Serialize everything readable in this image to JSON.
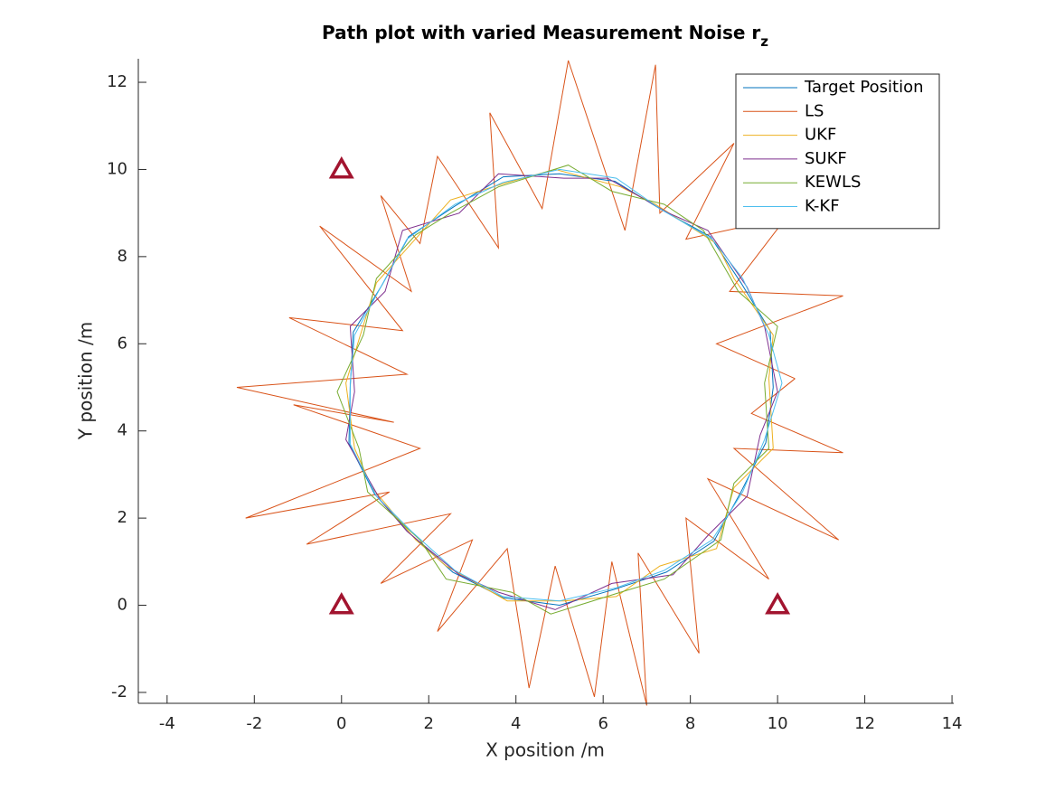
{
  "chart_data": {
    "type": "line",
    "title": "Path plot with varied Measurement Noise r",
    "title_subscript": "z",
    "xlabel": "X position /m",
    "ylabel": "Y position /m",
    "xlim": [
      -4.66,
      14.04
    ],
    "ylim": [
      -2.25,
      12.54
    ],
    "xticks": [
      -4,
      -2,
      0,
      2,
      4,
      6,
      8,
      10,
      12,
      14
    ],
    "yticks": [
      -2,
      0,
      2,
      4,
      6,
      8,
      10,
      12
    ],
    "legend": "upper right",
    "anchors": {
      "x": [
        0,
        0,
        10
      ],
      "y": [
        10,
        0,
        0
      ],
      "color": "#a2142f"
    },
    "series": [
      {
        "name": "Target Position",
        "color": "#0072bd",
        "x": [
          9.9,
          9.83,
          9.16,
          8.46,
          7.35,
          6.27,
          5.0,
          3.71,
          2.6,
          1.54,
          0.93,
          0.27,
          0.2,
          0.17,
          0.76,
          1.61,
          2.55,
          3.71,
          5.0,
          6.24,
          7.45,
          8.54,
          9.16,
          9.73,
          9.9
        ],
        "y": [
          5.0,
          6.3,
          7.4,
          8.46,
          9.07,
          9.73,
          9.9,
          9.83,
          9.16,
          8.46,
          7.35,
          6.27,
          5.0,
          3.71,
          2.55,
          1.61,
          0.76,
          0.17,
          0.0,
          0.36,
          0.76,
          1.47,
          2.6,
          3.73,
          5.0
        ]
      },
      {
        "name": "LS",
        "color": "#d95319",
        "x": [
          10.4,
          8.6,
          11.5,
          8.9,
          10.2,
          7.9,
          9.0,
          7.3,
          7.2,
          6.5,
          5.2,
          4.6,
          3.4,
          3.6,
          2.2,
          1.8,
          0.9,
          1.6,
          -0.5,
          1.4,
          -1.2,
          1.5,
          -2.4,
          1.2,
          -1.1,
          1.8,
          -2.2,
          1.1,
          -0.8,
          2.5,
          0.9,
          3.0,
          2.2,
          3.8,
          4.3,
          4.9,
          5.8,
          6.2,
          7.0,
          6.8,
          8.2,
          7.9,
          9.8,
          8.4,
          11.4,
          9.0,
          11.5,
          9.4,
          10.4
        ],
        "y": [
          5.2,
          6.0,
          7.1,
          7.2,
          8.9,
          8.4,
          10.6,
          9.0,
          12.4,
          8.6,
          12.5,
          9.1,
          11.3,
          8.2,
          10.3,
          8.3,
          9.4,
          7.2,
          8.7,
          6.3,
          6.6,
          5.3,
          5.0,
          4.2,
          4.6,
          3.6,
          2.0,
          2.6,
          1.4,
          2.1,
          0.5,
          1.5,
          -0.6,
          1.3,
          -1.9,
          0.9,
          -2.1,
          1.0,
          -2.3,
          1.2,
          -1.1,
          2.0,
          0.6,
          2.9,
          1.5,
          3.6,
          3.5,
          4.4,
          5.2
        ]
      },
      {
        "name": "UKF",
        "color": "#edb120",
        "x": [
          9.8,
          9.9,
          9.0,
          8.6,
          7.2,
          6.4,
          4.9,
          3.8,
          2.5,
          1.6,
          0.8,
          0.4,
          0.1,
          0.3,
          0.7,
          1.7,
          2.4,
          3.8,
          5.1,
          6.3,
          7.3,
          8.6,
          9.0,
          9.9,
          9.8
        ],
        "y": [
          5.2,
          6.2,
          7.5,
          8.3,
          9.2,
          9.6,
          10.0,
          9.7,
          9.3,
          8.3,
          7.4,
          6.1,
          5.1,
          3.6,
          2.7,
          1.5,
          0.9,
          0.1,
          0.1,
          0.2,
          0.9,
          1.3,
          2.7,
          3.6,
          5.2
        ]
      },
      {
        "name": "SUKF",
        "color": "#7e2f8e",
        "x": [
          10.0,
          9.7,
          9.3,
          8.4,
          7.5,
          6.1,
          5.1,
          3.6,
          2.7,
          1.4,
          1.0,
          0.2,
          0.3,
          0.1,
          0.9,
          1.5,
          2.7,
          3.6,
          4.9,
          6.2,
          7.6,
          8.4,
          9.3,
          9.6,
          10.0
        ],
        "y": [
          4.9,
          6.4,
          7.3,
          8.6,
          9.0,
          9.8,
          9.8,
          9.9,
          9.0,
          8.6,
          7.2,
          6.4,
          4.9,
          3.8,
          2.4,
          1.7,
          0.7,
          0.3,
          -0.1,
          0.5,
          0.7,
          1.6,
          2.5,
          3.9,
          4.9
        ]
      },
      {
        "name": "KEWLS",
        "color": "#77ac30",
        "x": [
          9.7,
          10.0,
          9.1,
          8.3,
          7.4,
          6.2,
          5.2,
          3.6,
          2.5,
          1.7,
          0.8,
          0.5,
          -0.1,
          0.4,
          0.6,
          1.8,
          2.4,
          3.9,
          4.8,
          6.4,
          7.4,
          8.7,
          9.0,
          9.8,
          9.7
        ],
        "y": [
          5.1,
          6.4,
          7.2,
          8.6,
          9.2,
          9.5,
          10.1,
          9.6,
          9.0,
          8.5,
          7.5,
          6.2,
          4.9,
          3.6,
          2.6,
          1.5,
          0.6,
          0.3,
          -0.2,
          0.3,
          0.6,
          1.5,
          2.8,
          3.6,
          5.1
        ]
      },
      {
        "name": "K-KF",
        "color": "#4dbeee",
        "x": [
          10.1,
          9.8,
          9.2,
          8.5,
          7.3,
          6.3,
          5.0,
          3.7,
          2.6,
          1.5,
          0.9,
          0.3,
          0.2,
          0.2,
          0.8,
          1.6,
          2.6,
          3.7,
          5.0,
          6.3,
          7.4,
          8.5,
          9.2,
          9.7,
          10.1
        ],
        "y": [
          5.1,
          6.2,
          7.5,
          8.4,
          9.1,
          9.8,
          10.0,
          9.7,
          9.2,
          8.4,
          7.3,
          6.2,
          5.1,
          3.7,
          2.5,
          1.7,
          0.8,
          0.2,
          0.1,
          0.4,
          0.8,
          1.5,
          2.6,
          3.8,
          5.1
        ]
      }
    ]
  }
}
